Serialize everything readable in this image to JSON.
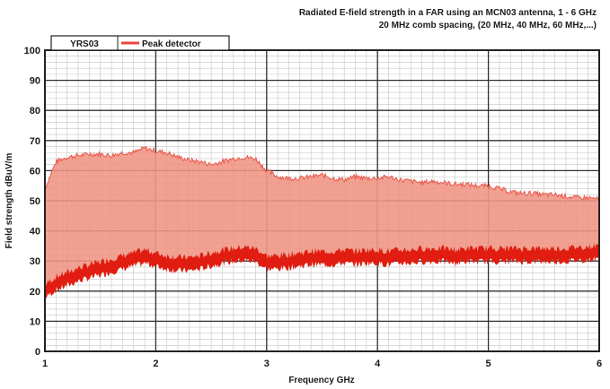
{
  "chart_data": {
    "type": "line",
    "title": [
      "Radiated  E-field strength in a FAR using an MCN03 antenna, 1 - 6 GHz",
      "20 MHz comb spacing, (20 MHz, 40 MHz, 60 MHz,...)"
    ],
    "xlabel": "Frequency  GHz",
    "ylabel": "Field strength dBuV/m",
    "xlim": [
      1,
      6
    ],
    "ylim": [
      0,
      100
    ],
    "x_ticks": [
      1,
      2,
      3,
      4,
      5,
      6
    ],
    "y_ticks": [
      0,
      10,
      20,
      30,
      40,
      50,
      60,
      70,
      80,
      90,
      100
    ],
    "grid": true,
    "legend_position": "top-left",
    "legend": {
      "first_label": "YRS03",
      "series_label": "Peak detector",
      "series_color": "#e8483a"
    },
    "colors": {
      "upper_fill": "#ef8f7e",
      "lower_fill": "#e01d10",
      "comb_line": "#f2a494"
    },
    "series": [
      {
        "name": "Peak detector",
        "x": [
          1.0,
          1.1,
          1.2,
          1.3,
          1.4,
          1.5,
          1.6,
          1.7,
          1.8,
          1.9,
          2.0,
          2.1,
          2.2,
          2.3,
          2.4,
          2.5,
          2.6,
          2.7,
          2.8,
          2.9,
          3.0,
          3.1,
          3.2,
          3.3,
          3.4,
          3.5,
          3.6,
          3.7,
          3.8,
          3.9,
          4.0,
          4.1,
          4.2,
          4.3,
          4.4,
          4.5,
          4.6,
          4.7,
          4.8,
          4.9,
          5.0,
          5.1,
          5.2,
          5.3,
          5.4,
          5.5,
          5.6,
          5.7,
          5.8,
          5.9,
          6.0
        ],
        "upper": [
          54,
          63,
          64.5,
          65,
          65.5,
          65.5,
          65,
          66,
          66,
          67.5,
          66.5,
          66,
          64.5,
          63.5,
          63,
          62,
          63,
          64,
          64.5,
          64,
          60,
          58,
          57.5,
          57.5,
          58,
          58.5,
          57.5,
          57,
          58,
          57.5,
          57.5,
          58,
          57,
          56.5,
          56,
          56.5,
          56,
          55.5,
          55.5,
          55,
          55,
          54,
          53,
          52.5,
          52.5,
          52,
          52,
          51.5,
          51,
          51,
          50.5
        ],
        "base": [
          20,
          22.5,
          24,
          25.5,
          26.5,
          27.5,
          28.5,
          29.5,
          30.5,
          31.5,
          30.5,
          29.5,
          29,
          29,
          29.5,
          30.5,
          31.5,
          32,
          32.5,
          32,
          29.5,
          29.5,
          30,
          30.5,
          31,
          31,
          31,
          31.5,
          31,
          31.5,
          31.5,
          31,
          31.5,
          31.5,
          32,
          32,
          32,
          31.5,
          32,
          32,
          32,
          32,
          32,
          32,
          32,
          32,
          32,
          32,
          32.5,
          32.5,
          33
        ]
      }
    ]
  }
}
